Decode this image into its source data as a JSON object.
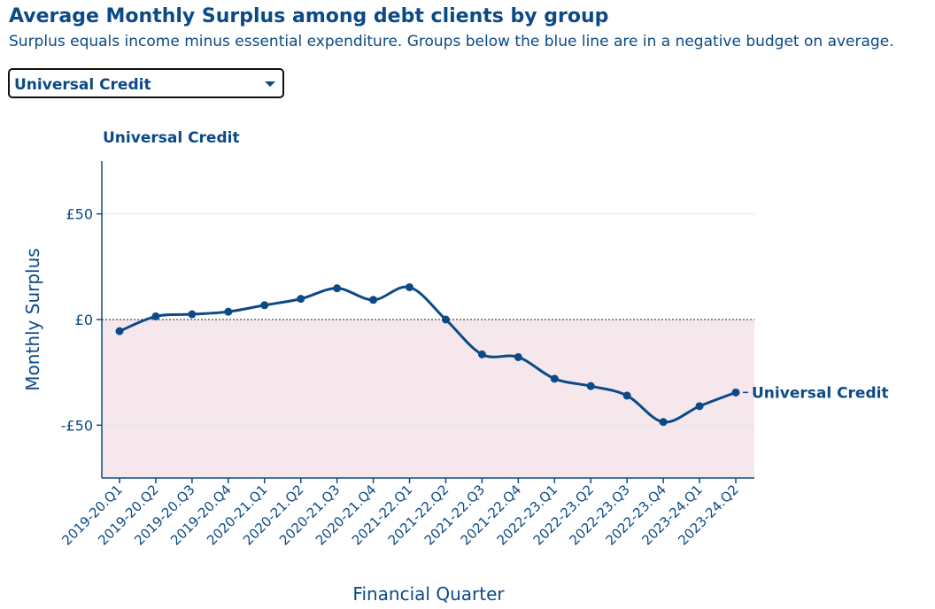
{
  "header": {
    "title": "Average Monthly Surplus among debt clients by group",
    "subtitle": "Surplus equals income minus essential expenditure. Groups below the blue line are in a negative budget on average."
  },
  "group_select": {
    "selected": "Universal Credit"
  },
  "icons": {
    "dropdown": "chevron-down-icon"
  },
  "colors": {
    "primary": "#0b4a86",
    "negative_fill": "#f5e7ec",
    "gridline": "#e6e6e6"
  },
  "chart_data": {
    "type": "line",
    "title": "Universal Credit",
    "xlabel": "Financial Quarter",
    "ylabel": "Monthly Surplus",
    "ylim": [
      -75,
      75
    ],
    "y_ticks": [
      50,
      0,
      -50
    ],
    "y_tick_labels": [
      "£50",
      "£0",
      "-£50"
    ],
    "zero_line": "dotted",
    "negative_region_shaded": true,
    "categories": [
      "2019-20.Q1",
      "2019-20.Q2",
      "2019-20.Q3",
      "2019-20.Q4",
      "2020-21.Q1",
      "2020-21.Q2",
      "2020-21.Q3",
      "2020-21.Q4",
      "2021-22.Q1",
      "2021-22.Q2",
      "2021-22.Q3",
      "2021-22.Q4",
      "2022-23.Q1",
      "2022-23.Q2",
      "2022-23.Q3",
      "2022-23.Q4",
      "2023-24.Q1",
      "2023-24.Q2"
    ],
    "series": [
      {
        "name": "Universal Credit",
        "values": [
          -5.5,
          1.5,
          2.5,
          3.7,
          6.8,
          9.8,
          14.8,
          9.3,
          15.3,
          0,
          -16.5,
          -17.8,
          -28,
          -31.5,
          -36,
          -48.5,
          -41,
          -34.5
        ]
      }
    ],
    "end_label": "Universal Credit"
  }
}
